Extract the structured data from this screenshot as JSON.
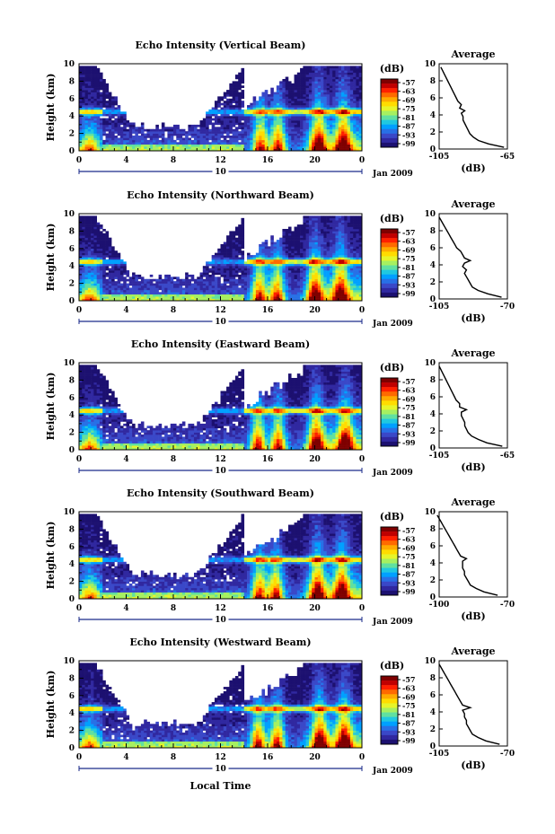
{
  "xlabel": "Local Time",
  "date_label": "Jan 2009",
  "day_label": "10",
  "ylabel": "Height (km)",
  "colorbar_unit": "(dB)",
  "colorbar_ticks": [
    "-57",
    "-63",
    "-69",
    "-75",
    "-81",
    "-87",
    "-93",
    "-99"
  ],
  "colorbar_colors": [
    "#7f0000",
    "#c00000",
    "#ff2000",
    "#ff6a00",
    "#ffaa00",
    "#ffdc00",
    "#e6f52a",
    "#a6f060",
    "#60e0a0",
    "#20c8e0",
    "#00a0ff",
    "#2870e6",
    "#3a48c8",
    "#3028a0",
    "#1c1070"
  ],
  "avg_title": "Average",
  "avg_xlabel": "(dB)",
  "chart_data": [
    {
      "type": "heatmap",
      "title": "Echo Intensity (Vertical Beam)",
      "x_ticks": [
        "0",
        "4",
        "8",
        "12",
        "16",
        "20",
        "0"
      ],
      "xlim": [
        0,
        24
      ],
      "ylim": [
        0,
        10
      ],
      "y_ticks": [
        "0",
        "2",
        "4",
        "6",
        "8",
        "10"
      ],
      "zlim": [
        -99,
        -57
      ],
      "bright_band_km": 4.5,
      "convective_hours": [
        15.4,
        16.9,
        20.3,
        22.4
      ],
      "average": {
        "type": "line",
        "title": "Average",
        "xlabel": "(dB)",
        "x_ticks": [
          "-105",
          "-65"
        ],
        "xlim": [
          -105,
          -65
        ],
        "y_ticks": [
          "0",
          "2",
          "4",
          "6",
          "8",
          "10"
        ],
        "ylim": [
          0,
          10
        ],
        "height_km": [
          0.2,
          0.6,
          1,
          1.4,
          1.8,
          2.2,
          2.6,
          3,
          3.4,
          3.8,
          4.2,
          4.5,
          4.8,
          5.2,
          5.6,
          6,
          6.4,
          6.8,
          7.2,
          7.6,
          8,
          8.4,
          8.8,
          9.2,
          9.6
        ],
        "value_db": [
          -67,
          -76,
          -82,
          -85,
          -87,
          -88,
          -89,
          -90,
          -91,
          -91,
          -92,
          -90,
          -93,
          -92,
          -94,
          -95,
          -96,
          -97,
          -98,
          -99,
          -100,
          -101,
          -102,
          -103,
          -104
        ]
      }
    },
    {
      "type": "heatmap",
      "title": "Echo Intensity (Northward Beam)",
      "x_ticks": [
        "0",
        "4",
        "8",
        "12",
        "16",
        "20",
        "0"
      ],
      "xlim": [
        0,
        24
      ],
      "ylim": [
        0,
        10
      ],
      "y_ticks": [
        "0",
        "2",
        "4",
        "6",
        "8",
        "10"
      ],
      "zlim": [
        -99,
        -57
      ],
      "bright_band_km": 4.5,
      "convective_hours": [
        15.3,
        16.8,
        20.0,
        22.2
      ],
      "average": {
        "type": "line",
        "title": "Average",
        "xlabel": "(dB)",
        "x_ticks": [
          "-105",
          "-70"
        ],
        "xlim": [
          -105,
          -70
        ],
        "y_ticks": [
          "0",
          "2",
          "4",
          "6",
          "8",
          "10"
        ],
        "ylim": [
          0,
          10
        ],
        "height_km": [
          0.2,
          0.6,
          1,
          1.4,
          1.8,
          2.2,
          2.6,
          3,
          3.4,
          3.8,
          4.2,
          4.5,
          4.8,
          5.2,
          5.6,
          6,
          6.4,
          6.8,
          7.2,
          7.6,
          8,
          8.4,
          8.8,
          9.2,
          9.6
        ],
        "value_db": [
          -73,
          -80,
          -85,
          -88,
          -89,
          -90,
          -91,
          -92,
          -91,
          -93,
          -92,
          -89,
          -92,
          -93,
          -94,
          -96,
          -97,
          -98,
          -99,
          -100,
          -101,
          -102,
          -103,
          -104,
          -105
        ]
      }
    },
    {
      "type": "heatmap",
      "title": "Echo Intensity (Eastward Beam)",
      "x_ticks": [
        "0",
        "4",
        "8",
        "12",
        "16",
        "20",
        "0"
      ],
      "xlim": [
        0,
        24
      ],
      "ylim": [
        0,
        10
      ],
      "y_ticks": [
        "0",
        "2",
        "4",
        "6",
        "8",
        "10"
      ],
      "zlim": [
        -99,
        -57
      ],
      "bright_band_km": 4.5,
      "convective_hours": [
        15.2,
        16.9,
        20.1,
        22.6
      ],
      "average": {
        "type": "line",
        "title": "Average",
        "xlabel": "(dB)",
        "x_ticks": [
          "-105",
          "-65"
        ],
        "xlim": [
          -105,
          -65
        ],
        "y_ticks": [
          "0",
          "2",
          "4",
          "6",
          "8",
          "10"
        ],
        "ylim": [
          0,
          10
        ],
        "height_km": [
          0.2,
          0.6,
          1,
          1.4,
          1.8,
          2.2,
          2.6,
          3,
          3.4,
          3.8,
          4.2,
          4.5,
          4.8,
          5.2,
          5.6,
          6,
          6.4,
          6.8,
          7.2,
          7.6,
          8,
          8.4,
          8.8,
          9.2,
          9.6
        ],
        "value_db": [
          -68,
          -77,
          -82,
          -86,
          -88,
          -89,
          -90,
          -90,
          -91,
          -92,
          -92,
          -89,
          -93,
          -93,
          -95,
          -96,
          -97,
          -98,
          -99,
          -100,
          -101,
          -102,
          -103,
          -104,
          -105
        ]
      }
    },
    {
      "type": "heatmap",
      "title": "Echo Intensity (Southward Beam)",
      "x_ticks": [
        "0",
        "4",
        "8",
        "12",
        "16",
        "20",
        "0"
      ],
      "xlim": [
        0,
        24
      ],
      "ylim": [
        0,
        10
      ],
      "y_ticks": [
        "0",
        "2",
        "4",
        "6",
        "8",
        "10"
      ],
      "zlim": [
        -99,
        -57
      ],
      "bright_band_km": 4.5,
      "convective_hours": [
        15.3,
        16.7,
        20.2,
        22.3
      ],
      "average": {
        "type": "line",
        "title": "Average",
        "xlabel": "(dB)",
        "x_ticks": [
          "-100",
          "-70"
        ],
        "xlim": [
          -100,
          -65
        ],
        "y_ticks": [
          "0",
          "2",
          "4",
          "6",
          "8",
          "10"
        ],
        "ylim": [
          0,
          10
        ],
        "height_km": [
          0.2,
          0.6,
          1,
          1.4,
          1.8,
          2.2,
          2.6,
          3,
          3.4,
          3.8,
          4.2,
          4.5,
          4.8,
          5.2,
          5.6,
          6,
          6.4,
          6.8,
          7.2,
          7.6,
          8,
          8.4,
          8.8,
          9.2,
          9.6
        ],
        "value_db": [
          -70,
          -77,
          -81,
          -84,
          -85,
          -86,
          -87,
          -87,
          -88,
          -88,
          -88,
          -86,
          -89,
          -90,
          -91,
          -92,
          -93,
          -94,
          -95,
          -96,
          -97,
          -98,
          -99,
          -100,
          -101
        ]
      }
    },
    {
      "type": "heatmap",
      "title": "Echo Intensity (Westward Beam)",
      "x_ticks": [
        "0",
        "4",
        "8",
        "12",
        "16",
        "20",
        "0"
      ],
      "xlim": [
        0,
        24
      ],
      "ylim": [
        0,
        10
      ],
      "y_ticks": [
        "0",
        "2",
        "4",
        "6",
        "8",
        "10"
      ],
      "zlim": [
        -99,
        -57
      ],
      "bright_band_km": 4.5,
      "convective_hours": [
        15.2,
        16.8,
        20.4,
        22.5
      ],
      "average": {
        "type": "line",
        "title": "Average",
        "xlabel": "(dB)",
        "x_ticks": [
          "-105",
          "-70"
        ],
        "xlim": [
          -105,
          -70
        ],
        "y_ticks": [
          "0",
          "2",
          "4",
          "6",
          "8",
          "10"
        ],
        "ylim": [
          0,
          10
        ],
        "height_km": [
          0.2,
          0.6,
          1,
          1.4,
          1.8,
          2.2,
          2.6,
          3,
          3.4,
          3.8,
          4.2,
          4.5,
          4.8,
          5.2,
          5.6,
          6,
          6.4,
          6.8,
          7.2,
          7.6,
          8,
          8.4,
          8.8,
          9.2,
          9.6
        ],
        "value_db": [
          -74,
          -81,
          -85,
          -88,
          -89,
          -90,
          -91,
          -91,
          -92,
          -92,
          -93,
          -89,
          -93,
          -94,
          -95,
          -96,
          -97,
          -98,
          -99,
          -100,
          -101,
          -102,
          -103,
          -104,
          -105
        ]
      }
    }
  ]
}
